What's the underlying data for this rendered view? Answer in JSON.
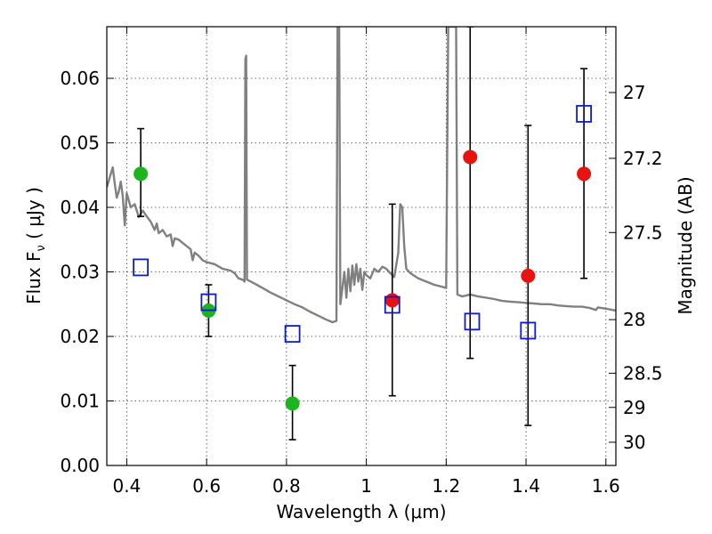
{
  "chart_data": {
    "type": "scatter",
    "xlabel": "Wavelength  λ (μm)",
    "ylabel": "Flux  F",
    "ylabel_sub": "ν",
    "ylabel_unit": "  ( μJy )",
    "y2label": "Magnitude (AB)",
    "xlim": [
      0.35,
      1.625
    ],
    "ylim": [
      0.0,
      0.068
    ],
    "grid": true,
    "x_ticks": [
      "0.4",
      "0.6",
      "0.8",
      "1",
      "1.2",
      "1.4",
      "1.6"
    ],
    "x_tick_values": [
      0.4,
      0.6,
      0.8,
      1.0,
      1.2,
      1.4,
      1.6
    ],
    "y_ticks": [
      "0.00",
      "0.01",
      "0.02",
      "0.03",
      "0.04",
      "0.05",
      "0.06"
    ],
    "y_tick_values": [
      0.0,
      0.01,
      0.02,
      0.03,
      0.04,
      0.05,
      0.06
    ],
    "y2_ticks": [
      {
        "label": "27",
        "flux": 0.0578
      },
      {
        "label": "27.2",
        "flux": 0.0476
      },
      {
        "label": "27.5",
        "flux": 0.0361
      },
      {
        "label": "28",
        "flux": 0.0226
      },
      {
        "label": "28.5",
        "flux": 0.0143
      },
      {
        "label": "29",
        "flux": 0.009
      },
      {
        "label": "30",
        "flux": 0.0036
      }
    ],
    "series": [
      {
        "marker": "circle",
        "color": "#1db41d",
        "points": [
          {
            "x": 0.435,
            "y": 0.0452,
            "yerr_low": 0.0386,
            "yerr_high": 0.0522
          },
          {
            "x": 0.605,
            "y": 0.024,
            "yerr_low": 0.02,
            "yerr_high": 0.028
          },
          {
            "x": 0.815,
            "y": 0.0096,
            "yerr_low": 0.004,
            "yerr_high": 0.0155
          }
        ]
      },
      {
        "marker": "circle",
        "color": "#e8120e",
        "points": [
          {
            "x": 1.065,
            "y": 0.0256,
            "yerr_low": 0.0108,
            "yerr_high": 0.0405
          },
          {
            "x": 1.26,
            "y": 0.0478,
            "yerr_low": 0.0166,
            "yerr_high": 0.068
          },
          {
            "x": 1.405,
            "y": 0.0294,
            "yerr_low": 0.0062,
            "yerr_high": 0.0527
          },
          {
            "x": 1.545,
            "y": 0.0452,
            "yerr_low": 0.029,
            "yerr_high": 0.0615
          }
        ]
      },
      {
        "marker": "square",
        "color": "#0b1ad9",
        "points": [
          {
            "x": 0.435,
            "y": 0.0307
          },
          {
            "x": 0.605,
            "y": 0.0253
          },
          {
            "x": 0.815,
            "y": 0.0204
          },
          {
            "x": 1.065,
            "y": 0.0249
          },
          {
            "x": 1.265,
            "y": 0.0223
          },
          {
            "x": 1.405,
            "y": 0.0209
          },
          {
            "x": 1.545,
            "y": 0.0545
          }
        ]
      },
      {
        "style": "line",
        "color": "#808080",
        "points": [
          [
            0.35,
            0.0431
          ],
          [
            0.36,
            0.0452
          ],
          [
            0.365,
            0.0462
          ],
          [
            0.37,
            0.0436
          ],
          [
            0.375,
            0.0415
          ],
          [
            0.38,
            0.0425
          ],
          [
            0.385,
            0.044
          ],
          [
            0.39,
            0.0418
          ],
          [
            0.395,
            0.0372
          ],
          [
            0.4,
            0.0422
          ],
          [
            0.41,
            0.04
          ],
          [
            0.42,
            0.0405
          ],
          [
            0.43,
            0.0385
          ],
          [
            0.44,
            0.0395
          ],
          [
            0.45,
            0.0386
          ],
          [
            0.46,
            0.0378
          ],
          [
            0.47,
            0.0365
          ],
          [
            0.475,
            0.0375
          ],
          [
            0.48,
            0.036
          ],
          [
            0.49,
            0.0365
          ],
          [
            0.5,
            0.0355
          ],
          [
            0.51,
            0.0358
          ],
          [
            0.515,
            0.034
          ],
          [
            0.52,
            0.0352
          ],
          [
            0.53,
            0.035
          ],
          [
            0.54,
            0.0345
          ],
          [
            0.55,
            0.034
          ],
          [
            0.56,
            0.0335
          ],
          [
            0.565,
            0.0318
          ],
          [
            0.57,
            0.033
          ],
          [
            0.58,
            0.0325
          ],
          [
            0.59,
            0.0318
          ],
          [
            0.6,
            0.0315
          ],
          [
            0.62,
            0.0312
          ],
          [
            0.64,
            0.0305
          ],
          [
            0.66,
            0.0302
          ],
          [
            0.67,
            0.0298
          ],
          [
            0.68,
            0.029
          ],
          [
            0.69,
            0.0288
          ],
          [
            0.695,
            0.0285
          ],
          [
            0.697,
            0.063
          ],
          [
            0.699,
            0.0635
          ],
          [
            0.701,
            0.0288
          ],
          [
            0.72,
            0.0282
          ],
          [
            0.74,
            0.0275
          ],
          [
            0.76,
            0.0268
          ],
          [
            0.78,
            0.0262
          ],
          [
            0.8,
            0.0256
          ],
          [
            0.82,
            0.025
          ],
          [
            0.84,
            0.0245
          ],
          [
            0.86,
            0.0238
          ],
          [
            0.88,
            0.0232
          ],
          [
            0.9,
            0.0226
          ],
          [
            0.915,
            0.0222
          ],
          [
            0.925,
            0.0224
          ],
          [
            0.928,
            0.068
          ],
          [
            0.932,
            0.068
          ],
          [
            0.935,
            0.025
          ],
          [
            0.94,
            0.0275
          ],
          [
            0.945,
            0.03
          ],
          [
            0.95,
            0.026
          ],
          [
            0.955,
            0.0305
          ],
          [
            0.96,
            0.027
          ],
          [
            0.965,
            0.031
          ],
          [
            0.97,
            0.028
          ],
          [
            0.975,
            0.0312
          ],
          [
            0.98,
            0.0285
          ],
          [
            0.985,
            0.0305
          ],
          [
            0.99,
            0.0272
          ],
          [
            0.995,
            0.03
          ],
          [
            1.0,
            0.0295
          ],
          [
            1.01,
            0.029
          ],
          [
            1.02,
            0.0305
          ],
          [
            1.03,
            0.03
          ],
          [
            1.04,
            0.0308
          ],
          [
            1.05,
            0.0305
          ],
          [
            1.06,
            0.0298
          ],
          [
            1.07,
            0.0292
          ],
          [
            1.08,
            0.033
          ],
          [
            1.085,
            0.0405
          ],
          [
            1.09,
            0.04
          ],
          [
            1.095,
            0.034
          ],
          [
            1.1,
            0.0305
          ],
          [
            1.11,
            0.0298
          ],
          [
            1.13,
            0.029
          ],
          [
            1.15,
            0.0285
          ],
          [
            1.17,
            0.028
          ],
          [
            1.19,
            0.0277
          ],
          [
            1.2,
            0.0275
          ],
          [
            1.205,
            0.068
          ],
          [
            1.225,
            0.068
          ],
          [
            1.228,
            0.0265
          ],
          [
            1.24,
            0.0262
          ],
          [
            1.26,
            0.0265
          ],
          [
            1.28,
            0.0262
          ],
          [
            1.3,
            0.026
          ],
          [
            1.32,
            0.0258
          ],
          [
            1.34,
            0.0255
          ],
          [
            1.36,
            0.0254
          ],
          [
            1.38,
            0.0253
          ],
          [
            1.4,
            0.0252
          ],
          [
            1.42,
            0.0251
          ],
          [
            1.44,
            0.025
          ],
          [
            1.46,
            0.025
          ],
          [
            1.48,
            0.0248
          ],
          [
            1.5,
            0.0247
          ],
          [
            1.52,
            0.0246
          ],
          [
            1.54,
            0.0246
          ],
          [
            1.56,
            0.0244
          ],
          [
            1.575,
            0.0241
          ],
          [
            1.58,
            0.0245
          ],
          [
            1.6,
            0.0243
          ],
          [
            1.625,
            0.024
          ]
        ]
      }
    ]
  }
}
